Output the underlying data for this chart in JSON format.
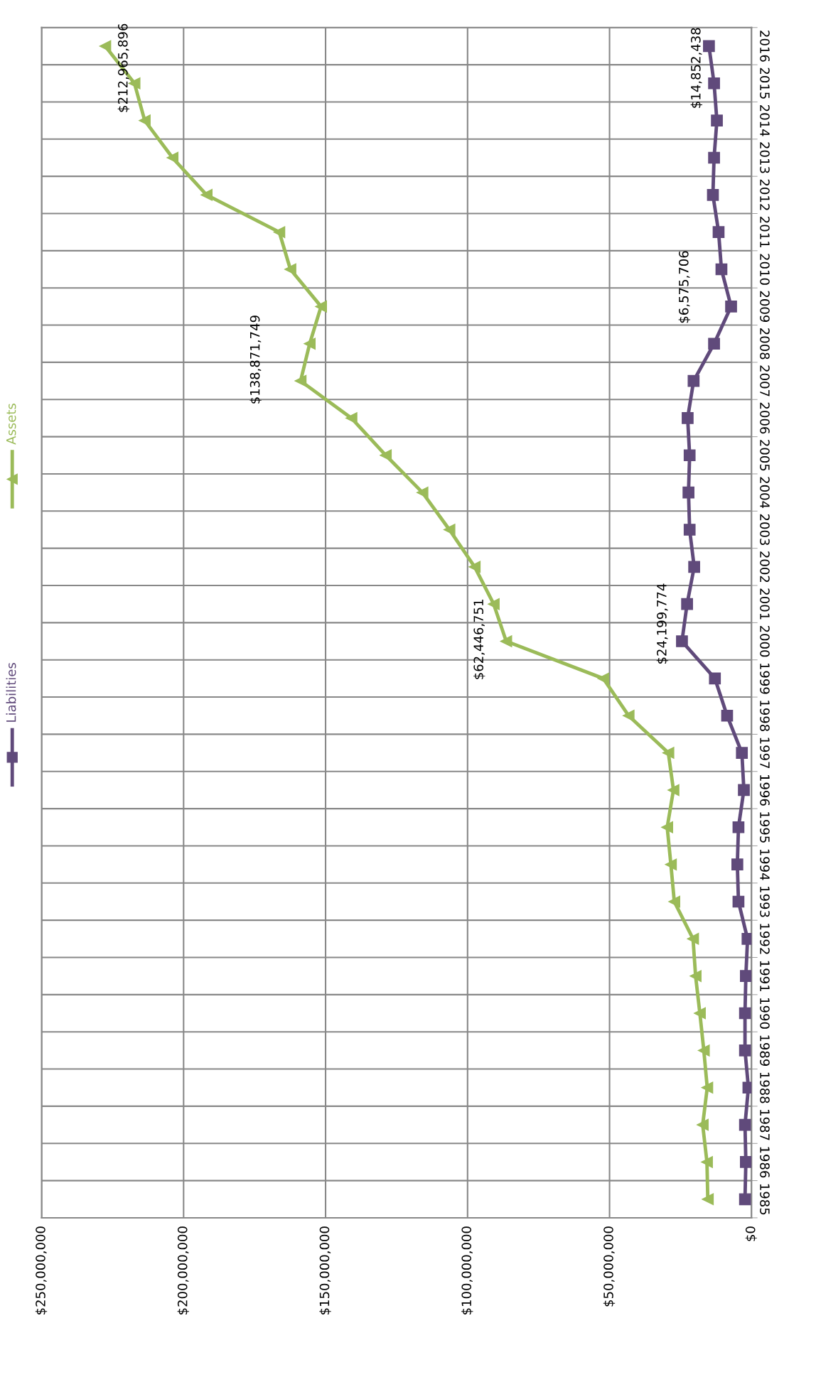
{
  "chart_data": {
    "type": "line",
    "categories": [
      "2016",
      "2015",
      "2014",
      "2013",
      "2012",
      "2011",
      "2010",
      "2009",
      "2008",
      "2007",
      "2006",
      "2005",
      "2004",
      "2003",
      "2002",
      "2001",
      "2000",
      "1999",
      "1998",
      "1997",
      "1996",
      "1995",
      "1994",
      "1993",
      "1992",
      "1991",
      "1990",
      "1989",
      "1988",
      "1987",
      "1986",
      "1985"
    ],
    "series": [
      {
        "name": "Liabilities",
        "color": "#604a7b",
        "marker": "square",
        "values": [
          15000000,
          13200000,
          12200000,
          13200000,
          13600000,
          11600000,
          10600000,
          7200000,
          13200000,
          20400000,
          22500000,
          21800000,
          22200000,
          21800000,
          20200000,
          22700000,
          24500000,
          12900000,
          8600000,
          3400000,
          2700000,
          4600000,
          5000000,
          4600000,
          1400000,
          2000000,
          2300000,
          2300000,
          1100000,
          2300000,
          2000000,
          2300000
        ]
      },
      {
        "name": "Assets",
        "color": "#9bbb59",
        "marker": "triangle",
        "values": [
          227600000,
          217300000,
          213700000,
          203900000,
          191900000,
          166300000,
          162400000,
          151600000,
          155600000,
          158800000,
          140900000,
          128800000,
          115900000,
          106400000,
          97500000,
          90800000,
          86400000,
          52200000,
          43300000,
          29300000,
          27500000,
          29700000,
          28400000,
          27200000,
          20600000,
          19700000,
          18200000,
          16800000,
          15600000,
          17200000,
          15700000,
          15400000
        ]
      }
    ],
    "orientation": "horizontal",
    "xlim": [
      250000000,
      0
    ],
    "xticks": [
      {
        "value": 0,
        "label": "$0"
      },
      {
        "value": 50000000,
        "label": "$50,000,000"
      },
      {
        "value": 100000000,
        "label": "$100,000,000"
      },
      {
        "value": 150000000,
        "label": "$150,000,000"
      },
      {
        "value": 200000000,
        "label": "$200,000,000"
      },
      {
        "value": 250000000,
        "label": "$250,000,000"
      }
    ],
    "annotations": [
      "$212,965,896",
      "$14,852,438",
      "$6,575,706",
      "$138,871,749",
      "$62,446,751",
      "$24,199,774"
    ],
    "grid": true,
    "legend": "left",
    "line_style": "solid"
  }
}
